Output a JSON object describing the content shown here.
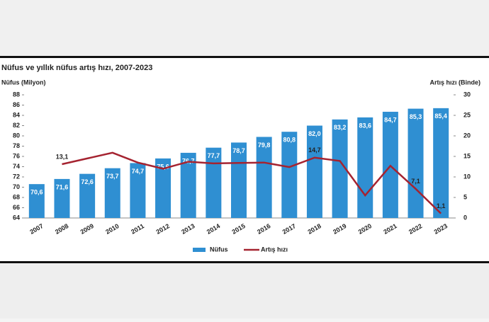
{
  "chart_data": {
    "type": "bar_line",
    "title": "Nüfus ve yıllık nüfus artış hızı, 2007-2023",
    "y_label": "Nüfus (Milyon)",
    "y2_label": "Artış hızı (Binde)",
    "categories": [
      "2007",
      "2008",
      "2009",
      "2010",
      "2011",
      "2012",
      "2013",
      "2014",
      "2015",
      "2016",
      "2017",
      "2018",
      "2019",
      "2020",
      "2021",
      "2022",
      "2023"
    ],
    "series": [
      {
        "name": "Nüfus",
        "type": "bar",
        "color": "#2f8fd2",
        "values": [
          70.6,
          71.6,
          72.6,
          73.7,
          74.7,
          75.6,
          76.7,
          77.7,
          78.7,
          79.8,
          80.8,
          82.0,
          83.2,
          83.6,
          84.7,
          85.3,
          85.4
        ],
        "value_labels": [
          "70,6",
          "71,6",
          "72,6",
          "73,7",
          "74,7",
          "75,6",
          "76,7",
          "77,7",
          "78,7",
          "79,8",
          "80,8",
          "82,0",
          "83,2",
          "83,6",
          "84,7",
          "85,3",
          "85,4"
        ]
      },
      {
        "name": "Artış hızı",
        "type": "line",
        "axis": "y2",
        "color": "#a52330",
        "values": [
          null,
          13.1,
          14.5,
          15.9,
          13.5,
          12.0,
          13.7,
          13.3,
          13.4,
          13.5,
          12.4,
          14.7,
          13.9,
          5.5,
          12.7,
          7.1,
          1.1
        ],
        "value_labels": [
          null,
          "13,1",
          null,
          null,
          null,
          null,
          null,
          null,
          null,
          null,
          null,
          "14,7",
          null,
          null,
          null,
          "7,1",
          "1,1"
        ]
      }
    ],
    "ylim": [
      64,
      88
    ],
    "yticks": [
      64,
      66,
      68,
      70,
      72,
      74,
      76,
      78,
      80,
      82,
      84,
      86,
      88
    ],
    "y2lim": [
      0,
      30
    ],
    "y2ticks": [
      0,
      5,
      10,
      15,
      20,
      25,
      30
    ],
    "legend": "bottom"
  }
}
